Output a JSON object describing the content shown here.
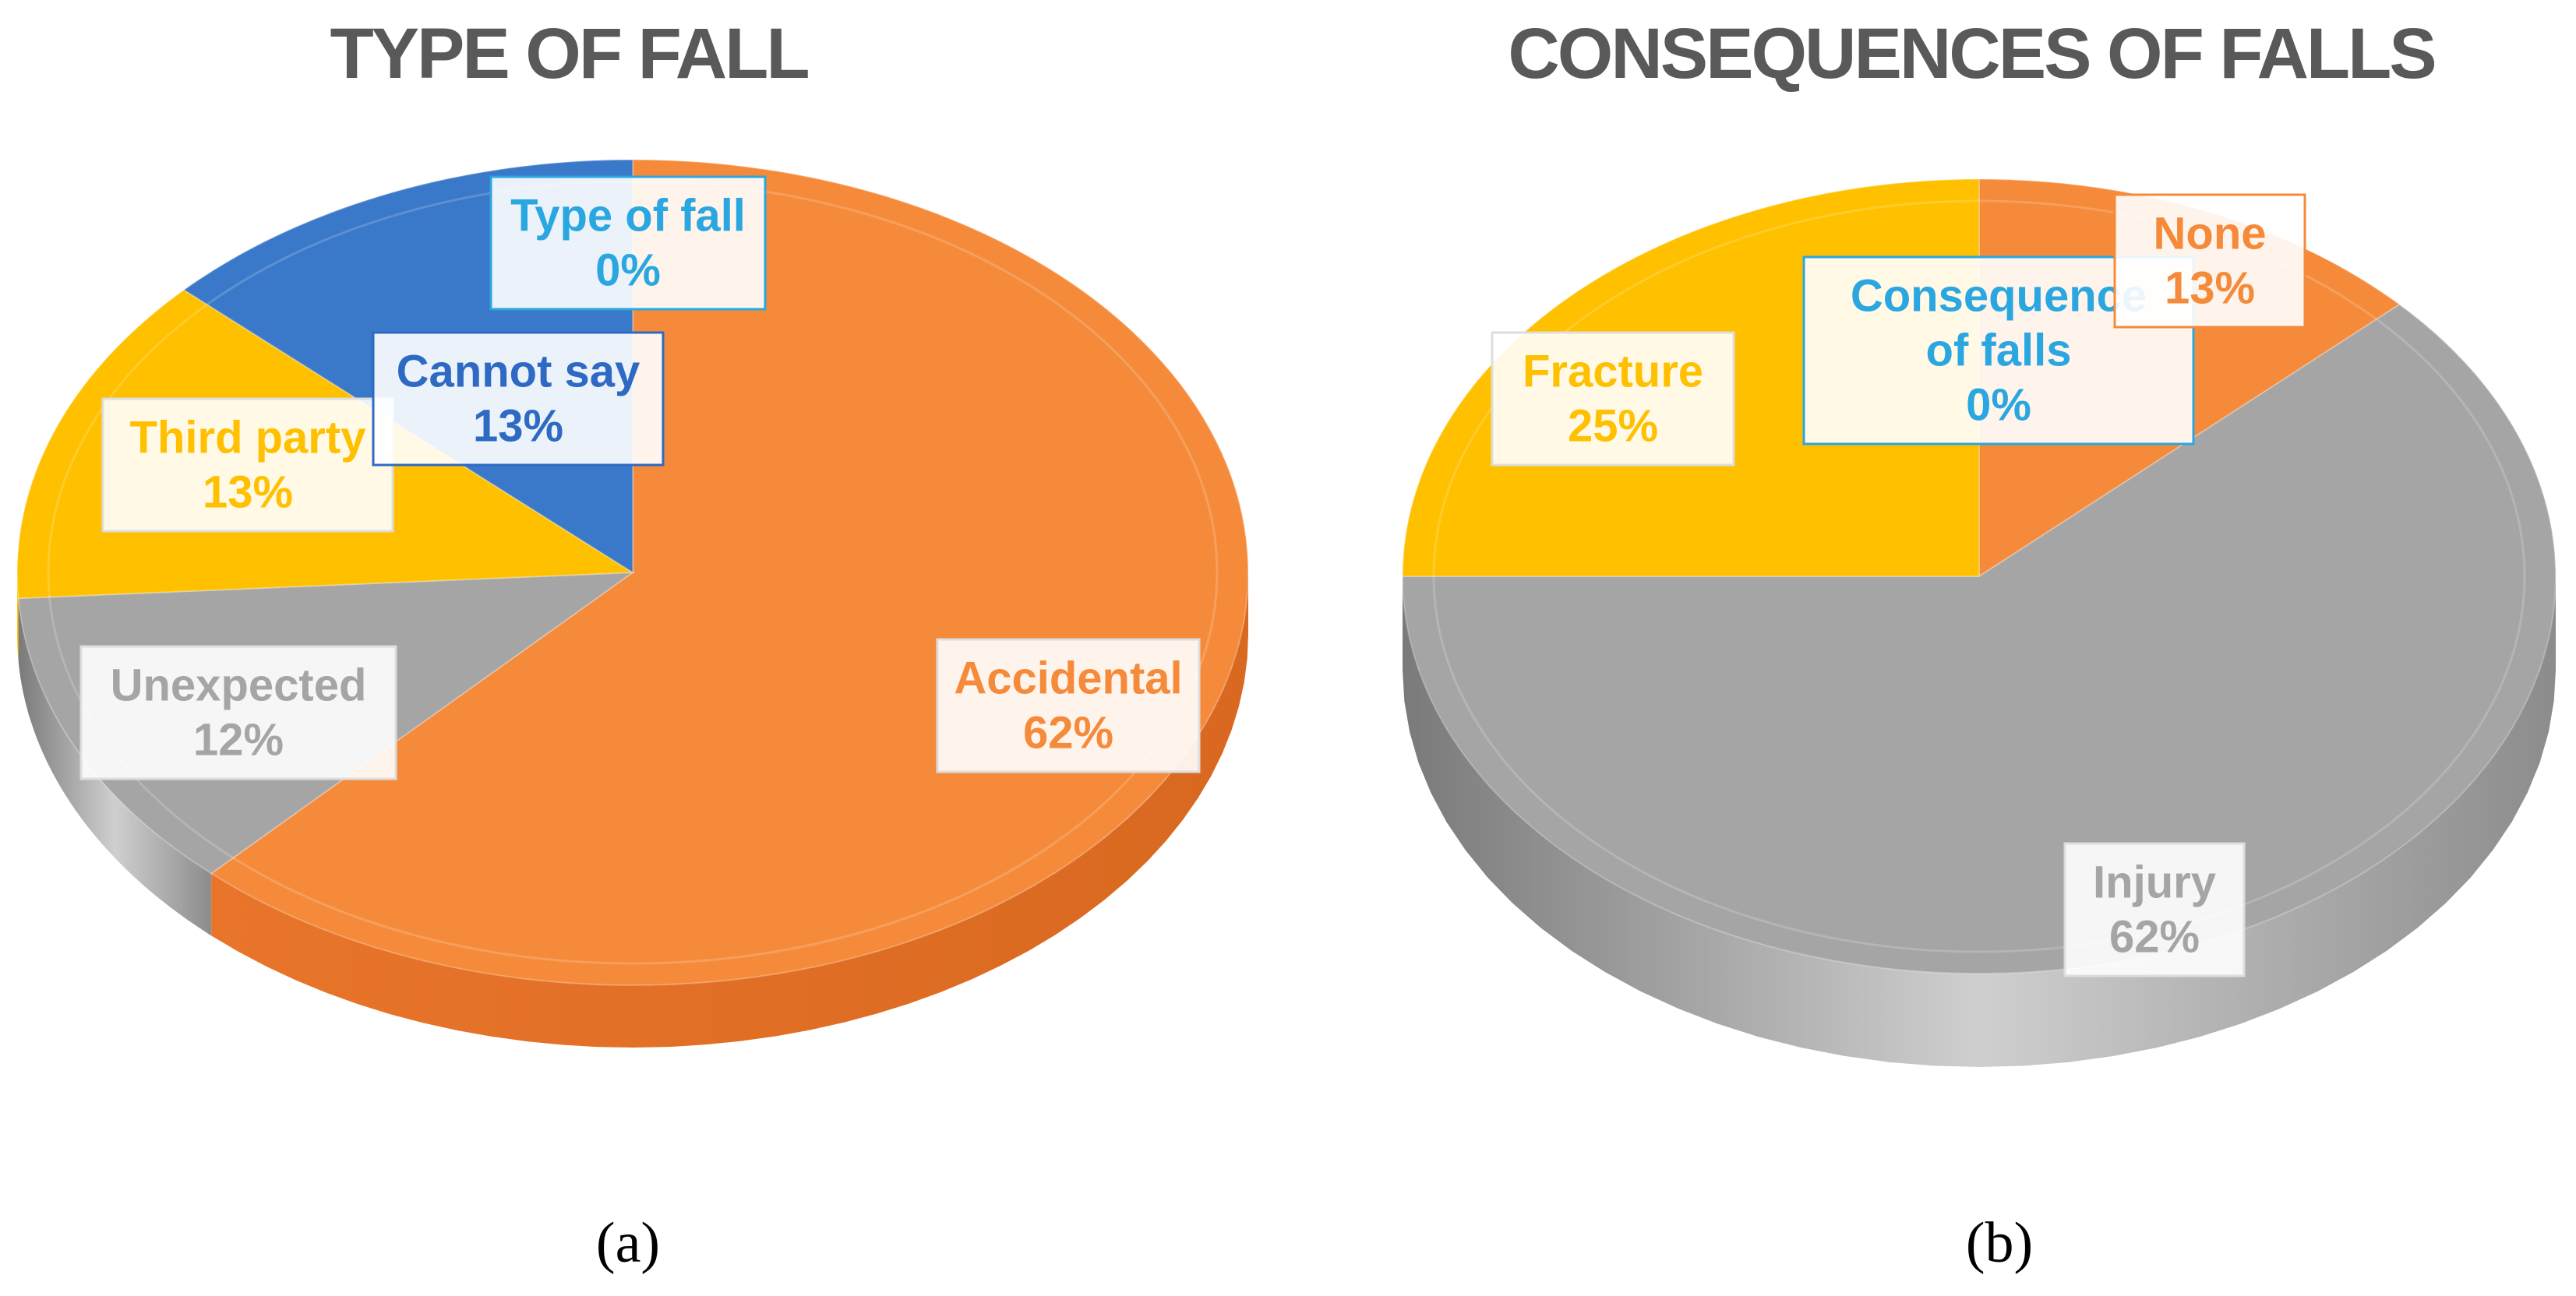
{
  "colors": {
    "accent_orange": "#f58a3a",
    "accent_gray": "#a5a5a5",
    "accent_yellow": "#ffc000",
    "accent_blue": "#3a78c9",
    "label_blue": "#2aa7e0",
    "title_gray": "#595959"
  },
  "chart_data": [
    {
      "type": "pie",
      "title": "TYPE OF FALL",
      "caption": "(a)",
      "slices": [
        {
          "label": "Type of fall",
          "value": 0,
          "display": "0%",
          "color": "#2aa7e0",
          "label_color": "#2aa7e0"
        },
        {
          "label": "Accidental",
          "value": 62,
          "display": "62%",
          "color": "#f58a3a",
          "label_color": "#f58a3a"
        },
        {
          "label": "Unexpected",
          "value": 12,
          "display": "12%",
          "color": "#a5a5a5",
          "label_color": "#a5a5a5"
        },
        {
          "label": "Third party",
          "value": 13,
          "display": "13%",
          "color": "#ffc000",
          "label_color": "#ffc000"
        },
        {
          "label": "Cannot say",
          "value": 13,
          "display": "13%",
          "color": "#3a78c9",
          "label_color": "#2e6ac3"
        }
      ]
    },
    {
      "type": "pie",
      "title": "CONSEQUENCES OF FALLS",
      "caption": "(b)",
      "slices": [
        {
          "label": "Consequence of falls",
          "value": 0,
          "display": "0%",
          "color": "#2aa7e0",
          "label_color": "#2aa7e0"
        },
        {
          "label": "None",
          "value": 13,
          "display": "13%",
          "color": "#f58a3a",
          "label_color": "#f58a3a"
        },
        {
          "label": "Injury",
          "value": 62,
          "display": "62%",
          "color": "#a5a5a5",
          "label_color": "#a5a5a5"
        },
        {
          "label": "Fracture",
          "value": 25,
          "display": "25%",
          "color": "#ffc000",
          "label_color": "#ffc000"
        }
      ]
    }
  ]
}
